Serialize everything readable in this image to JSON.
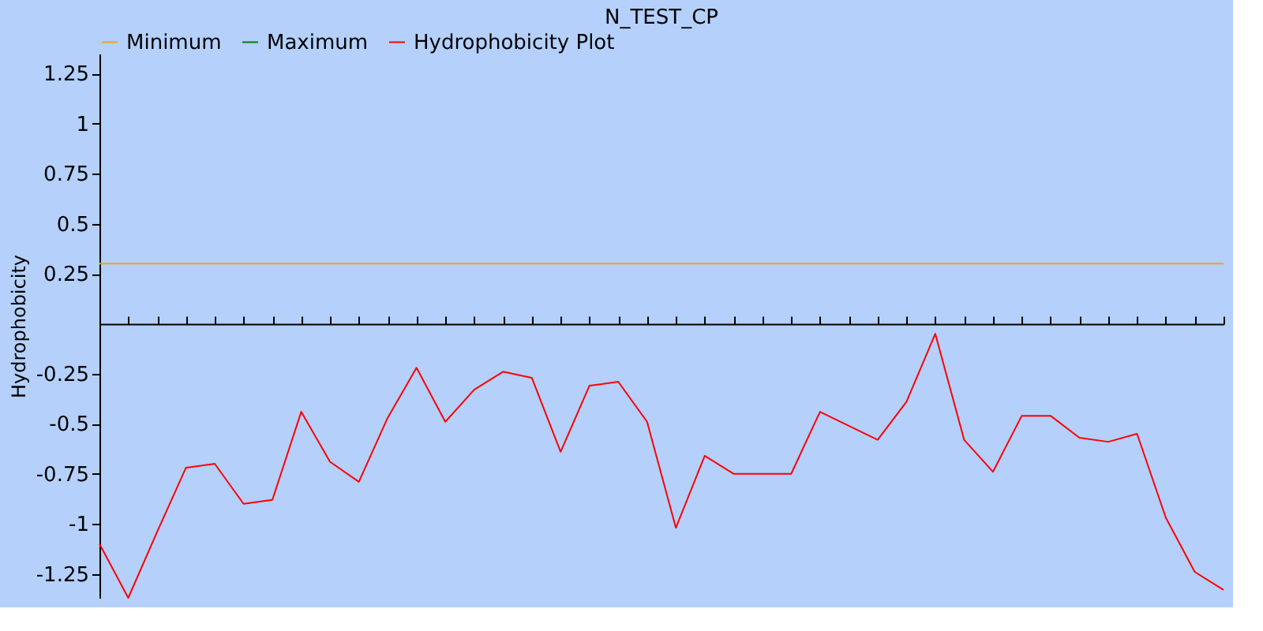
{
  "chart_data": {
    "type": "line",
    "title": "N_TEST_CP",
    "ylabel": "Hydrophobicity",
    "categories": [
      null,
      null,
      null,
      null,
      null,
      null,
      null,
      null,
      null,
      null,
      null,
      null,
      null,
      null,
      null,
      null,
      null,
      null,
      null,
      null,
      null,
      null,
      null,
      null,
      null,
      null,
      null,
      null,
      null,
      null,
      null,
      null,
      null,
      null,
      null,
      null,
      null,
      null,
      null,
      null
    ],
    "series": [
      {
        "name": "Minimum",
        "color": "#f0a020",
        "values": [
          0.3,
          0.3,
          0.3,
          0.3,
          0.3,
          0.3,
          0.3,
          0.3,
          0.3,
          0.3,
          0.3,
          0.3,
          0.3,
          0.3,
          0.3,
          0.3,
          0.3,
          0.3,
          0.3,
          0.3,
          0.3,
          0.3,
          0.3,
          0.3,
          0.3,
          0.3,
          0.3,
          0.3,
          0.3,
          0.3,
          0.3,
          0.3,
          0.3,
          0.3,
          0.3,
          0.3,
          0.3,
          0.3,
          0.3,
          0.3
        ]
      },
      {
        "name": "Maximum",
        "color": "#008000",
        "values": [
          null,
          null,
          null,
          null,
          null,
          null,
          null,
          null,
          null,
          null,
          null,
          null,
          null,
          null,
          null,
          null,
          null,
          null,
          null,
          null,
          null,
          null,
          null,
          null,
          null,
          null,
          null,
          null,
          null,
          null,
          null,
          null,
          null,
          null,
          null,
          null,
          null,
          null,
          null,
          null
        ]
      },
      {
        "name": "Hydrophobicity Plot",
        "color": "#ff0000",
        "values": [
          -1.1,
          -1.37,
          -1.04,
          -0.72,
          -0.7,
          -0.9,
          -0.88,
          -0.44,
          -0.69,
          -0.79,
          -0.47,
          -0.22,
          -0.49,
          -0.33,
          -0.24,
          -0.27,
          -0.64,
          -0.31,
          -0.29,
          -0.49,
          -1.02,
          -0.66,
          -0.75,
          -0.75,
          -0.75,
          -0.44,
          -0.51,
          -0.58,
          -0.39,
          -0.05,
          -0.58,
          -0.74,
          -0.46,
          -0.46,
          -0.57,
          -0.59,
          -0.55,
          -0.97,
          -1.24,
          -1.33
        ]
      }
    ],
    "ylim": [
      -1.37,
      1.35
    ],
    "yticks": [
      -1.25,
      -1,
      -0.75,
      -0.5,
      -0.25,
      0.25,
      0.5,
      0.75,
      1,
      1.25
    ],
    "grid": false,
    "legend": "top",
    "marker": "none",
    "line_style": "solid",
    "tick_labels": "y"
  }
}
